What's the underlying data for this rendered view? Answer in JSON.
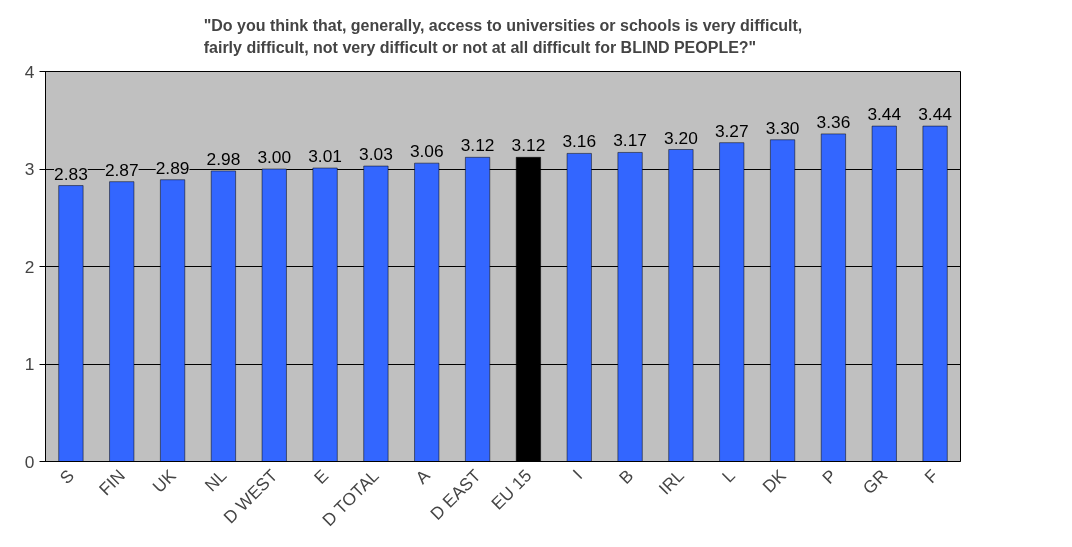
{
  "chart_data": {
    "type": "bar",
    "title": "\"Do you think that, generally, access to universities or schools is very difficult, fairly difficult, not very difficult or not at all difficult for BLIND PEOPLE?\"",
    "categories": [
      "S",
      "FIN",
      "UK",
      "NL",
      "D WEST",
      "E",
      "D TOTAL",
      "A",
      "D EAST",
      "EU 15",
      "I",
      "B",
      "IRL",
      "L",
      "DK",
      "P",
      "GR",
      "F"
    ],
    "values": [
      2.83,
      2.87,
      2.89,
      2.98,
      3.0,
      3.01,
      3.03,
      3.06,
      3.12,
      3.12,
      3.16,
      3.17,
      3.2,
      3.27,
      3.3,
      3.36,
      3.44,
      3.44
    ],
    "value_labels": [
      "2.83",
      "2.87",
      "2.89",
      "2.98",
      "3.00",
      "3.01",
      "3.03",
      "3.06",
      "3.12",
      "3.12",
      "3.16",
      "3.17",
      "3.20",
      "3.27",
      "3.30",
      "3.36",
      "3.44",
      "3.44"
    ],
    "colors": [
      "#3366ff",
      "#3366ff",
      "#3366ff",
      "#3366ff",
      "#3366ff",
      "#3366ff",
      "#3366ff",
      "#3366ff",
      "#3366ff",
      "#000000",
      "#3366ff",
      "#3366ff",
      "#3366ff",
      "#3366ff",
      "#3366ff",
      "#3366ff",
      "#3366ff",
      "#3366ff"
    ],
    "ylim": [
      0,
      4
    ],
    "yticks": [
      0,
      1,
      2,
      3,
      4
    ],
    "grid": "y"
  }
}
